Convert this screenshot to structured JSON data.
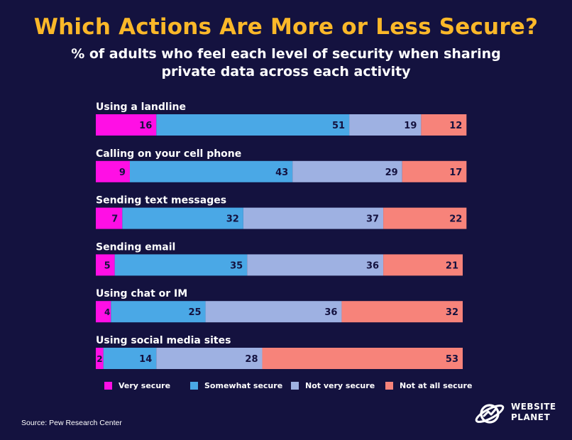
{
  "title": "Which Actions Are More or Less Secure?",
  "subtitle": "% of adults who feel each level of security when sharing private data across each activity",
  "source": "Source: Pew Research Center",
  "logo": {
    "line1": "WEBSITE",
    "line2": "PLANET"
  },
  "colors": {
    "background": "#14123f",
    "title": "#fbb829",
    "very_secure": "#ff0fe5",
    "somewhat_secure": "#4aa8e6",
    "not_very_secure": "#9eb1e2",
    "not_at_all_secure": "#f7837a",
    "bar_value_text": "#14123f"
  },
  "legend": [
    {
      "label": "Very secure",
      "color": "#ff0fe5"
    },
    {
      "label": "Somewhat secure",
      "color": "#4aa8e6"
    },
    {
      "label": "Not very secure",
      "color": "#9eb1e2"
    },
    {
      "label": "Not at all secure",
      "color": "#f7837a"
    }
  ],
  "chart_data": {
    "type": "bar",
    "orientation": "horizontal",
    "stacked": true,
    "title": "Which Actions Are More or Less Secure?",
    "subtitle": "% of adults who feel each level of security when sharing private data across each activity",
    "categories": [
      "Using a landline",
      "Calling on your cell phone",
      "Sending text messages",
      "Sending email",
      "Using chat or IM",
      "Using social media sites"
    ],
    "series": [
      {
        "name": "Very secure",
        "color": "#ff0fe5",
        "values": [
          16,
          9,
          7,
          5,
          4,
          2
        ]
      },
      {
        "name": "Somewhat secure",
        "color": "#4aa8e6",
        "values": [
          51,
          43,
          32,
          35,
          25,
          14
        ]
      },
      {
        "name": "Not very secure",
        "color": "#9eb1e2",
        "values": [
          19,
          29,
          37,
          36,
          36,
          28
        ]
      },
      {
        "name": "Not at all secure",
        "color": "#f7837a",
        "values": [
          12,
          17,
          22,
          21,
          32,
          53
        ]
      }
    ],
    "xlabel": "",
    "ylabel": "",
    "grid": false,
    "legend_position": "bottom"
  }
}
